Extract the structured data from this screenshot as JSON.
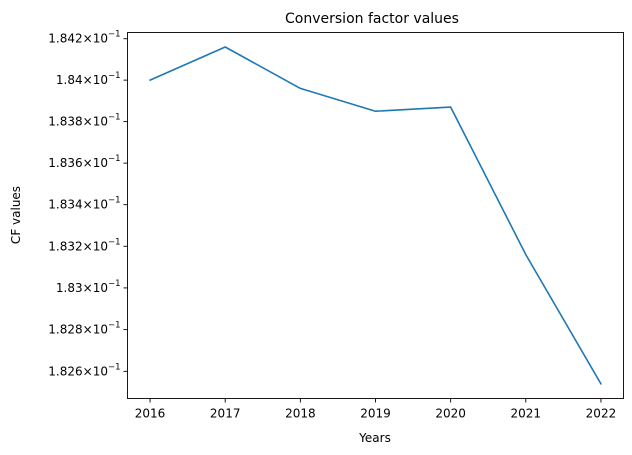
{
  "chart_data": {
    "type": "line",
    "title": "Conversion factor values",
    "xlabel": "Years",
    "ylabel": "CF values",
    "x": [
      2016,
      2017,
      2018,
      2019,
      2020,
      2021,
      2022
    ],
    "series": [
      {
        "name": "CF values",
        "color": "#1f77b4",
        "values": [
          0.184,
          0.18416,
          0.18396,
          0.18385,
          0.18387,
          0.18316,
          0.18254
        ]
      }
    ],
    "xlim": [
      2015.7,
      2022.3
    ],
    "ylim": [
      0.18247,
      0.18423
    ],
    "y_scale": "log",
    "y_ticks": [
      0.1826,
      0.1828,
      0.183,
      0.1832,
      0.1834,
      0.1836,
      0.1838,
      0.184,
      0.1842
    ],
    "y_tick_mantissas": [
      "1.826",
      "1.828",
      "1.83",
      "1.832",
      "1.834",
      "1.836",
      "1.838",
      "1.84",
      "1.842"
    ],
    "y_tick_base": "10",
    "y_tick_exponent": "−1",
    "x_tick_labels": [
      "2016",
      "2017",
      "2018",
      "2019",
      "2020",
      "2021",
      "2022"
    ],
    "grid": false,
    "legend": "none"
  }
}
